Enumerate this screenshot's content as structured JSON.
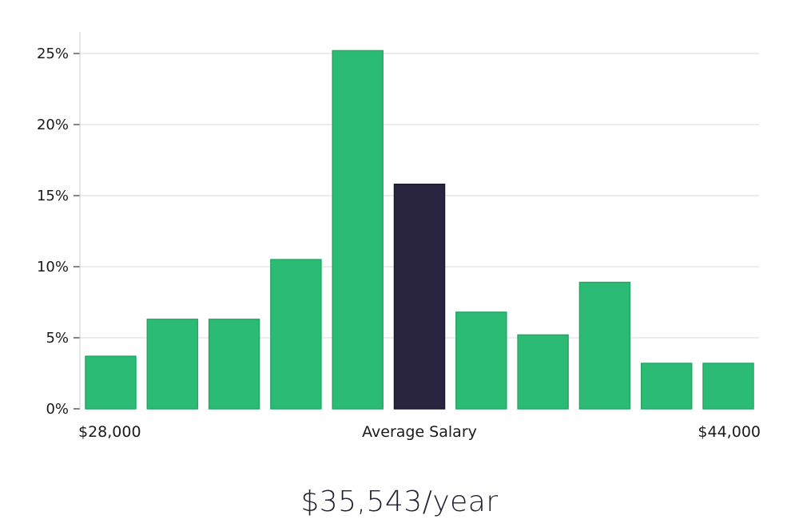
{
  "chart_data": {
    "type": "bar",
    "title": "",
    "xlabel": "Average Salary",
    "ylabel": "",
    "x_start_label": "$28,000",
    "x_end_label": "$44,000",
    "values": [
      3.7,
      6.3,
      6.3,
      10.5,
      25.2,
      15.8,
      6.8,
      5.2,
      8.9,
      3.2,
      3.2
    ],
    "highlight_index": 5,
    "ylim": [
      0,
      26
    ],
    "yticks": [
      0,
      5,
      10,
      15,
      20,
      25
    ],
    "ytick_labels": [
      "0%",
      "5%",
      "10%",
      "15%",
      "20%",
      "25%"
    ],
    "colors": {
      "bar": "#2bbb74",
      "bar_edge": "#25a866",
      "highlight": "#29243f",
      "grid": "#e2e2e2",
      "axis": "#cccccc"
    }
  },
  "salary_label": "$35,543/year"
}
